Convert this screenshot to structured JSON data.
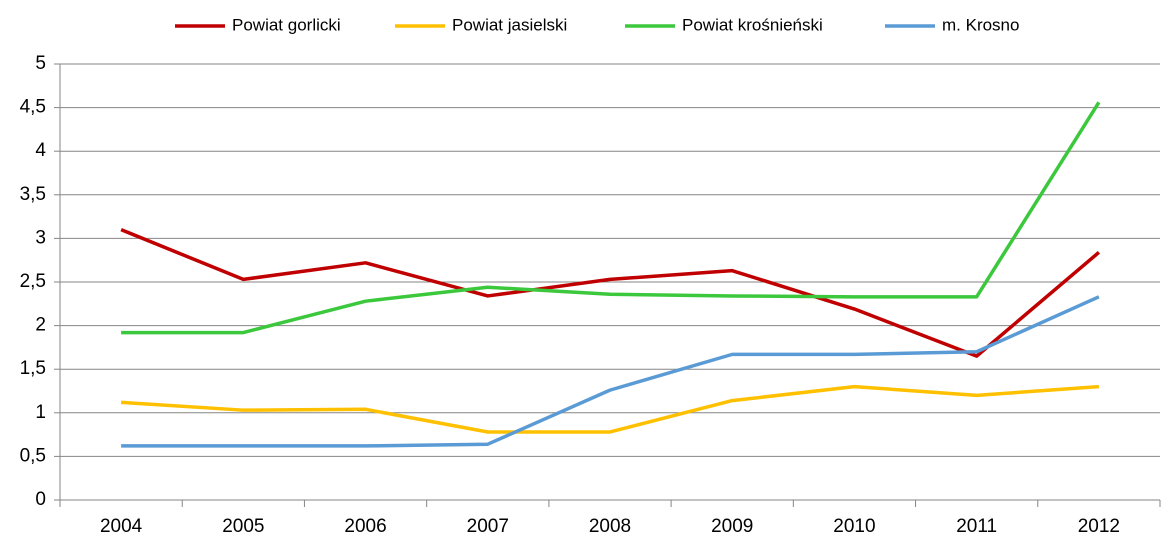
{
  "chart_data": {
    "type": "line",
    "categories": [
      "2004",
      "2005",
      "2006",
      "2007",
      "2008",
      "2009",
      "2010",
      "2011",
      "2012"
    ],
    "series": [
      {
        "name": "Powiat gorlicki",
        "color": "#c00000",
        "values": [
          3.1,
          2.53,
          2.72,
          2.34,
          2.53,
          2.63,
          2.19,
          1.65,
          2.84
        ]
      },
      {
        "name": "Powiat jasielski",
        "color": "#ffc000",
        "values": [
          1.12,
          1.03,
          1.04,
          0.78,
          0.78,
          1.14,
          1.3,
          1.2,
          1.3
        ]
      },
      {
        "name": "Powiat krośnieński",
        "color": "#3cc83c",
        "values": [
          1.92,
          1.92,
          2.28,
          2.44,
          2.36,
          2.34,
          2.33,
          2.33,
          4.56
        ]
      },
      {
        "name": "m. Krosno",
        "color": "#5b9bd5",
        "values": [
          0.62,
          0.62,
          0.62,
          0.64,
          1.26,
          1.67,
          1.67,
          1.7,
          2.33
        ]
      }
    ],
    "ylim": [
      0,
      5
    ],
    "yticks": [
      0,
      {
        "value": 0.5,
        "label": "0,5"
      },
      1,
      {
        "value": 1.5,
        "label": "1,5"
      },
      2,
      {
        "value": 2.5,
        "label": "2,5"
      },
      3,
      {
        "value": 3.5,
        "label": "3,5"
      },
      4,
      {
        "value": 4.5,
        "label": "4,5"
      },
      5
    ],
    "grid": true,
    "legend": "top"
  }
}
